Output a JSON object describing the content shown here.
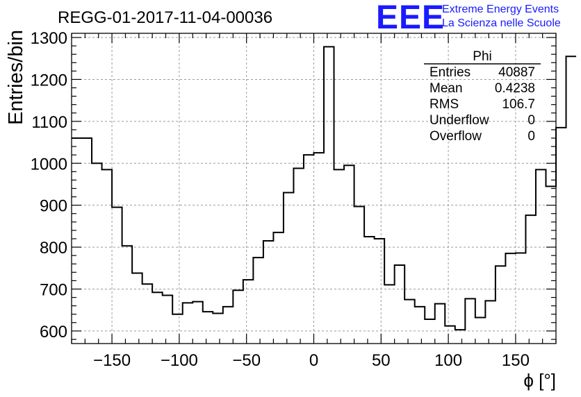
{
  "chart_data": {
    "type": "histogram",
    "title": "REGG-01-2017-11-04-00036",
    "xlabel": "ϕ [°]",
    "ylabel": "Entries/bin",
    "xlim": [
      -180,
      180
    ],
    "ylim": [
      570,
      1310
    ],
    "grid": true,
    "x_ticks": [
      -150,
      -100,
      -50,
      0,
      50,
      100,
      150
    ],
    "x_tick_labels": [
      "−150",
      "−100",
      "−50",
      "0",
      "50",
      "100",
      "150"
    ],
    "y_ticks": [
      600,
      700,
      800,
      900,
      1000,
      1100,
      1200,
      1300
    ],
    "y_tick_labels": [
      "600",
      "700",
      "800",
      "900",
      "1000",
      "1100",
      "1200",
      "1300"
    ],
    "bin_width": 7.5,
    "bin_start": -180,
    "values": [
      1060,
      1060,
      1000,
      985,
      895,
      803,
      738,
      712,
      692,
      685,
      640,
      667,
      670,
      646,
      642,
      658,
      697,
      722,
      775,
      815,
      835,
      930,
      988,
      1020,
      1025,
      1278,
      985,
      995,
      897,
      825,
      820,
      710,
      757,
      675,
      658,
      628,
      665,
      612,
      603,
      677,
      632,
      672,
      755,
      785,
      786,
      876,
      985,
      945,
      1085,
      1255
    ],
    "stats": {
      "title": "Phi",
      "rows": [
        {
          "label": "Entries",
          "value": "40887"
        },
        {
          "label": "Mean",
          "value": "0.4238"
        },
        {
          "label": "RMS",
          "value": "106.7"
        },
        {
          "label": "Underflow",
          "value": "0"
        },
        {
          "label": "Overflow",
          "value": "0"
        }
      ]
    }
  },
  "logo": {
    "mark": "EEE",
    "line1": "Extreme Energy Events",
    "line2": "La Scienza nelle Scuole",
    "color": "#1a1aff"
  }
}
